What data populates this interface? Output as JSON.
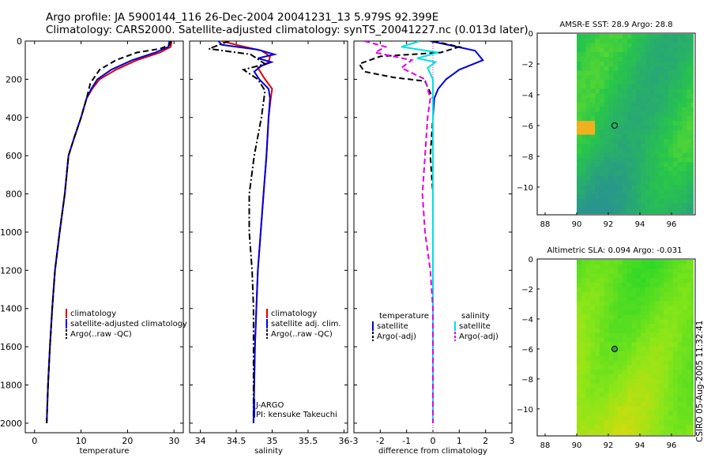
{
  "header": {
    "line1": "Argo profile: JA 5900144_116 26-Dec-2004 20041231_13 5.979S 92.399E",
    "line2": "Climatology: CARS2000. Satellite-adjusted climatology: synTS_20041227.nc (0.013d later)"
  },
  "credit": "CSIRO 05-Aug-2005 11:32:41",
  "colors": {
    "climatology": "#e00000",
    "satellite": "#0000e0",
    "argo": "#000000",
    "salinity": "#00e0e0",
    "argo_salinity": "#e000e0"
  },
  "chart_data": [
    {
      "id": "temperature",
      "type": "line",
      "xlabel": "temperature",
      "ylabel": "",
      "xlim": [
        -2,
        32
      ],
      "ylim": [
        0,
        2050
      ],
      "y_inverted": true,
      "xticks": [
        0,
        10,
        20,
        30
      ],
      "yticks": [
        0,
        200,
        400,
        600,
        800,
        1000,
        1200,
        1400,
        1600,
        1800,
        2000
      ],
      "legend": [
        "climatology",
        "satellite-adjusted climatology",
        "Argo(..raw -QC)"
      ],
      "series": [
        {
          "name": "climatology",
          "style": "solid",
          "points": [
            [
              29.5,
              0
            ],
            [
              29.3,
              30
            ],
            [
              27,
              60
            ],
            [
              22,
              100
            ],
            [
              17.5,
              150
            ],
            [
              14,
              200
            ],
            [
              12.4,
              250
            ],
            [
              11.2,
              300
            ],
            [
              10,
              400
            ],
            [
              8.6,
              500
            ],
            [
              7.3,
              600
            ],
            [
              6.5,
              800
            ],
            [
              5.4,
              1000
            ],
            [
              4.4,
              1200
            ],
            [
              3.8,
              1400
            ],
            [
              3.3,
              1600
            ],
            [
              2.9,
              1800
            ],
            [
              2.6,
              2000
            ]
          ]
        },
        {
          "name": "satellite-adjusted climatology",
          "style": "solid",
          "points": [
            [
              29.0,
              0
            ],
            [
              28.8,
              30
            ],
            [
              26,
              60
            ],
            [
              21,
              100
            ],
            [
              16.5,
              150
            ],
            [
              13.5,
              200
            ],
            [
              12.2,
              250
            ],
            [
              11.2,
              300
            ],
            [
              10,
              400
            ],
            [
              8.6,
              500
            ],
            [
              7.3,
              600
            ],
            [
              6.5,
              800
            ],
            [
              5.4,
              1000
            ],
            [
              4.4,
              1200
            ],
            [
              3.8,
              1400
            ],
            [
              3.3,
              1600
            ],
            [
              2.9,
              1800
            ],
            [
              2.6,
              2000
            ]
          ]
        },
        {
          "name": "Argo(..raw -QC)",
          "style": "dash",
          "points": [
            [
              29.3,
              0
            ],
            [
              29.1,
              20
            ],
            [
              27,
              40
            ],
            [
              22,
              60
            ],
            [
              17.5,
              100
            ],
            [
              14,
              150
            ],
            [
              12,
              220
            ],
            [
              11.2,
              300
            ],
            [
              10,
              400
            ],
            [
              8.6,
              500
            ],
            [
              7.3,
              600
            ],
            [
              6.5,
              800
            ],
            [
              5.4,
              1000
            ],
            [
              4.4,
              1200
            ],
            [
              3.8,
              1400
            ],
            [
              3.3,
              1600
            ],
            [
              2.9,
              1800
            ],
            [
              2.6,
              2000
            ]
          ]
        }
      ]
    },
    {
      "id": "salinity",
      "type": "line",
      "xlabel": "salinity",
      "ylabel": "",
      "xlim": [
        33.85,
        36.05
      ],
      "ylim": [
        0,
        2050
      ],
      "y_inverted": true,
      "xticks": [
        34,
        34.5,
        35,
        35.5,
        36
      ],
      "legend": [
        "climatology",
        "satellite adj. clim.",
        "Argo(..raw -QC)"
      ],
      "annotation": [
        "J-ARGO",
        "PI: kensuke Takeuchi"
      ],
      "series": [
        {
          "name": "climatology",
          "style": "solid",
          "points": [
            [
              34.3,
              0
            ],
            [
              34.5,
              20
            ],
            [
              34.85,
              50
            ],
            [
              34.97,
              80
            ],
            [
              34.95,
              110
            ],
            [
              34.8,
              140
            ],
            [
              34.9,
              200
            ],
            [
              35.0,
              250
            ],
            [
              34.98,
              300
            ],
            [
              34.95,
              400
            ],
            [
              34.92,
              600
            ],
            [
              34.88,
              800
            ],
            [
              34.84,
              1000
            ],
            [
              34.8,
              1200
            ],
            [
              34.78,
              1400
            ],
            [
              34.76,
              1600
            ],
            [
              34.75,
              1800
            ],
            [
              34.74,
              2000
            ]
          ]
        },
        {
          "name": "satellite adj. clim.",
          "style": "solid",
          "points": [
            [
              34.25,
              0
            ],
            [
              34.3,
              20
            ],
            [
              34.8,
              45
            ],
            [
              35.03,
              70
            ],
            [
              34.8,
              90
            ],
            [
              34.99,
              110
            ],
            [
              34.85,
              130
            ],
            [
              34.75,
              160
            ],
            [
              34.82,
              200
            ],
            [
              34.95,
              250
            ],
            [
              34.97,
              300
            ],
            [
              34.95,
              400
            ],
            [
              34.92,
              600
            ],
            [
              34.88,
              800
            ],
            [
              34.84,
              1000
            ],
            [
              34.8,
              1200
            ],
            [
              34.78,
              1400
            ],
            [
              34.76,
              1600
            ],
            [
              34.75,
              1800
            ],
            [
              34.74,
              2000
            ]
          ]
        },
        {
          "name": "Argo(..raw -QC)",
          "style": "dashdot",
          "points": [
            [
              34.4,
              0
            ],
            [
              34.12,
              40
            ],
            [
              34.7,
              70
            ],
            [
              34.9,
              120
            ],
            [
              34.6,
              150
            ],
            [
              34.8,
              200
            ],
            [
              34.9,
              260
            ],
            [
              34.85,
              400
            ],
            [
              34.75,
              600
            ],
            [
              34.68,
              800
            ],
            [
              34.68,
              1000
            ],
            [
              34.72,
              1200
            ],
            [
              34.74,
              1400
            ],
            [
              34.74,
              1600
            ],
            [
              34.74,
              1800
            ],
            [
              34.74,
              2000
            ]
          ]
        }
      ]
    },
    {
      "id": "difference",
      "type": "line",
      "xlabel": "difference from climatology",
      "ylabel": "",
      "xlim": [
        -3,
        3
      ],
      "ylim": [
        0,
        2050
      ],
      "y_inverted": true,
      "xticks": [
        -3,
        -2,
        -1,
        0,
        1,
        2,
        3
      ],
      "legend": [
        "temperature",
        "satellite",
        "Argo(-adj)",
        "salinity",
        "satellite",
        "Argo(-adj)"
      ],
      "series": [
        {
          "name": "temperature satellite",
          "style": "solid",
          "points": [
            [
              -0.1,
              0
            ],
            [
              1.6,
              50
            ],
            [
              1.9,
              100
            ],
            [
              1.0,
              150
            ],
            [
              0.5,
              200
            ],
            [
              0.2,
              250
            ],
            [
              0.05,
              300
            ],
            [
              0,
              400
            ],
            [
              0,
              600
            ],
            [
              0,
              800
            ],
            [
              0,
              1000
            ],
            [
              0,
              1200
            ],
            [
              0,
              1400
            ],
            [
              0,
              1600
            ],
            [
              0,
              1800
            ],
            [
              0,
              2000
            ]
          ]
        },
        {
          "name": "temperature Argo(-adj)",
          "style": "dash",
          "points": [
            [
              0,
              0
            ],
            [
              1.0,
              30
            ],
            [
              0.3,
              60
            ],
            [
              -2.0,
              80
            ],
            [
              -2.8,
              120
            ],
            [
              -2.6,
              160
            ],
            [
              -1.5,
              190
            ],
            [
              -0.3,
              210
            ],
            [
              0,
              300
            ],
            [
              0,
              400
            ],
            [
              -0.1,
              600
            ],
            [
              0,
              800
            ],
            [
              0,
              1000
            ],
            [
              0,
              1200
            ],
            [
              0,
              1400
            ],
            [
              0,
              1600
            ],
            [
              0,
              1800
            ],
            [
              0,
              2000
            ]
          ]
        },
        {
          "name": "salinity satellite",
          "style": "solid",
          "points": [
            [
              -0.5,
              0
            ],
            [
              -1.2,
              30
            ],
            [
              0.2,
              60
            ],
            [
              -0.6,
              90
            ],
            [
              0.1,
              110
            ],
            [
              -0.2,
              140
            ],
            [
              0,
              200
            ],
            [
              0,
              300
            ],
            [
              0,
              600
            ],
            [
              0,
              1000
            ],
            [
              0,
              1400
            ],
            [
              0,
              1800
            ],
            [
              0,
              2000
            ]
          ]
        },
        {
          "name": "salinity Argo(-adj)",
          "style": "dash",
          "points": [
            [
              -2.6,
              0
            ],
            [
              -1.8,
              30
            ],
            [
              -2.2,
              60
            ],
            [
              -0.8,
              100
            ],
            [
              -1.2,
              140
            ],
            [
              -0.3,
              200
            ],
            [
              -0.1,
              300
            ],
            [
              -0.2,
              400
            ],
            [
              -0.3,
              600
            ],
            [
              -0.4,
              800
            ],
            [
              -0.3,
              1000
            ],
            [
              -0.1,
              1200
            ],
            [
              0,
              1400
            ],
            [
              0,
              1600
            ],
            [
              0,
              1800
            ],
            [
              0,
              2000
            ]
          ]
        }
      ]
    },
    {
      "id": "sst-map",
      "type": "heatmap",
      "title": "AMSR-E SST: 28.9 Argo: 28.8",
      "xlim": [
        87.5,
        97.5
      ],
      "ylim": [
        -11.8,
        0
      ],
      "xticks": [
        88,
        90,
        92,
        94,
        96
      ],
      "yticks": [
        0,
        -2,
        -4,
        -6,
        -8,
        -10
      ],
      "marker": {
        "lon": 92.4,
        "lat": -6.0
      }
    },
    {
      "id": "sla-map",
      "type": "heatmap",
      "title": "Altimetric SLA: 0.094 Argo: -0.031",
      "xlim": [
        87.5,
        97.5
      ],
      "ylim": [
        -11.8,
        0
      ],
      "xticks": [
        88,
        90,
        92,
        94,
        96
      ],
      "yticks": [
        0,
        -2,
        -4,
        -6,
        -8,
        -10
      ],
      "marker": {
        "lon": 92.4,
        "lat": -6.0
      }
    }
  ]
}
